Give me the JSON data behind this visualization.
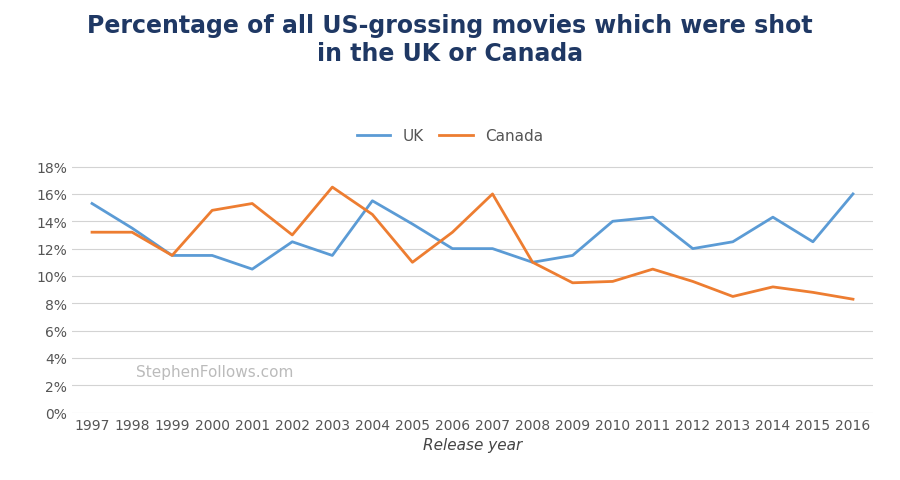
{
  "title": "Percentage of all US-grossing movies which were shot\nin the UK or Canada",
  "xlabel": "Release year",
  "years": [
    1997,
    1998,
    1999,
    2000,
    2001,
    2002,
    2003,
    2004,
    2005,
    2006,
    2007,
    2008,
    2009,
    2010,
    2011,
    2012,
    2013,
    2014,
    2015,
    2016
  ],
  "uk": [
    0.153,
    0.135,
    0.115,
    0.115,
    0.105,
    0.125,
    0.115,
    0.155,
    0.138,
    0.12,
    0.12,
    0.11,
    0.115,
    0.14,
    0.143,
    0.12,
    0.125,
    0.143,
    0.125,
    0.16
  ],
  "canada": [
    0.132,
    0.132,
    0.115,
    0.148,
    0.153,
    0.13,
    0.165,
    0.145,
    0.11,
    0.132,
    0.16,
    0.11,
    0.095,
    0.096,
    0.105,
    0.096,
    0.085,
    0.092,
    0.088,
    0.083
  ],
  "uk_color": "#5B9BD5",
  "canada_color": "#ED7D31",
  "background_color": "#FFFFFF",
  "grid_color": "#D3D3D3",
  "watermark": "StephenFollows.com",
  "ylim": [
    0,
    0.19
  ],
  "yticks": [
    0.0,
    0.02,
    0.04,
    0.06,
    0.08,
    0.1,
    0.12,
    0.14,
    0.16,
    0.18
  ],
  "title_fontsize": 17,
  "title_color": "#1F3864",
  "axis_label_fontsize": 11,
  "tick_fontsize": 10,
  "legend_fontsize": 11,
  "line_width": 2.0,
  "watermark_color": "#BBBBBB",
  "watermark_fontsize": 11
}
